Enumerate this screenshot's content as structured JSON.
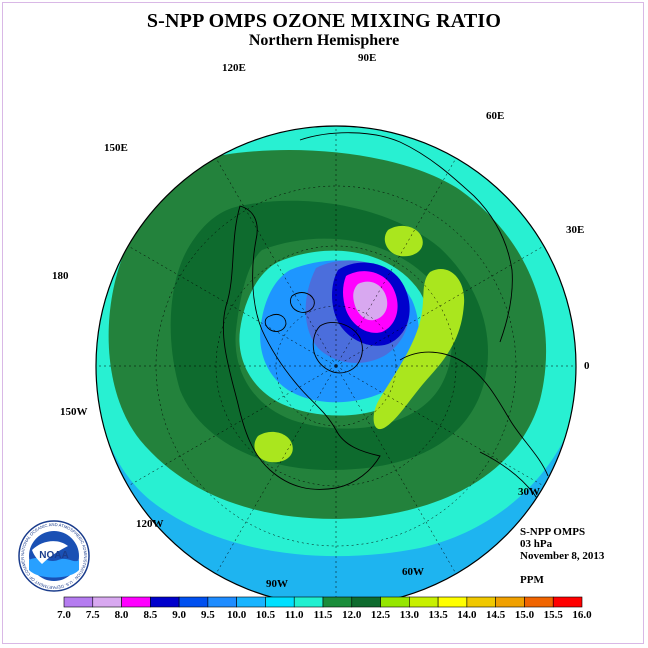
{
  "title": "S-NPP OMPS OZONE MIXING RATIO",
  "subtitle": "Northern Hemisphere",
  "info": {
    "instrument": "S-NPP OMPS",
    "level": "03 hPa",
    "date": "November 8, 2013",
    "units": "PPM"
  },
  "longitude_labels": [
    "90E",
    "60E",
    "30E",
    "0",
    "30W",
    "60W",
    "90W",
    "120W",
    "150W",
    "180",
    "150E",
    "120E"
  ],
  "colorbar": {
    "ticks": [
      "7.0",
      "7.5",
      "8.0",
      "8.5",
      "9.0",
      "9.5",
      "10.0",
      "10.5",
      "11.0",
      "11.5",
      "12.0",
      "12.5",
      "13.0",
      "13.5",
      "14.0",
      "14.5",
      "15.0",
      "15.5",
      "16.0"
    ],
    "colors": [
      "#b57cf0",
      "#d8a8f0",
      "#ff00ff",
      "#0000cc",
      "#0050f0",
      "#1e8cff",
      "#18b4ff",
      "#00e0ff",
      "#20f0d0",
      "#1a8c3a",
      "#0e6b2e",
      "#96e600",
      "#c8f000",
      "#ffff00",
      "#f0c800",
      "#f0a000",
      "#f06400",
      "#ff0000",
      "#8b4513"
    ]
  },
  "logo": {
    "text": "NOAA",
    "ring": "NATIONAL OCEANIC AND ATMOSPHERIC ADMINISTRATION · U.S. DEPARTMENT OF COMMERCE"
  },
  "field_colors": {
    "outer": "#1eb4f0",
    "band_cyan": "#28f0d2",
    "band_green": "#23823c",
    "band_dark": "#0e6b2e",
    "core_light": "#1e96ff",
    "core_blue": "#4b6edc",
    "max_yellowgreen": "#aae61e"
  }
}
